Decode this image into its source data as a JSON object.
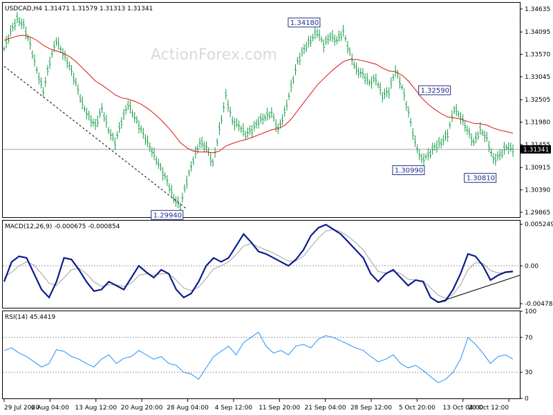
{
  "header": {
    "symbol_info": "USDCAD,H4  1.31471 1.31579 1.31313 1.31341",
    "watermark": "ActionForex.com"
  },
  "colors": {
    "candle": "#0f9a43",
    "ma": "#e01010",
    "macd_main": "#0a1a8c",
    "macd_signal": "#a0a0a0",
    "rsi": "#1e90ff",
    "callout": "#1f2d86",
    "grid": "#999999"
  },
  "chart_data": [
    {
      "type": "line",
      "panel": "price",
      "title": "USDCAD,H4",
      "ohlc_last": {
        "open": 1.31471,
        "high": 1.31579,
        "low": 1.31313,
        "close": 1.31341
      },
      "ylim": [
        1.2975,
        1.3478
      ],
      "y_ticks": [
        "1.34635",
        "1.34095",
        "1.33570",
        "1.33045",
        "1.32505",
        "1.31980",
        "1.31455",
        "1.30915",
        "1.30390",
        "1.29865"
      ],
      "current_price": "1.31341",
      "x_tick_labels": [
        "29 Jul 2020",
        "6 Aug 04:00",
        "13 Aug 12:00",
        "20 Aug 20:00",
        "28 Aug 04:00",
        "4 Sep 12:00",
        "11 Sep 20:00",
        "21 Sep 04:00",
        "28 Sep 12:00",
        "5 Oct 20:00",
        "13 Oct 04:00",
        "20 Oct 12:00"
      ],
      "annotations": [
        "1.34180",
        "1.32590",
        "1.30990",
        "1.30810",
        "1.29940"
      ],
      "series": [
        {
          "values": [
            1.337,
            1.341,
            1.344,
            1.3425,
            1.338,
            1.332,
            1.327,
            1.334,
            1.339,
            1.336,
            1.333,
            1.329,
            1.324,
            1.321,
            1.319,
            1.323,
            1.318,
            1.315,
            1.32,
            1.324,
            1.321,
            1.318,
            1.315,
            1.312,
            1.309,
            1.306,
            1.302,
            1.3,
            1.306,
            1.311,
            1.315,
            1.314,
            1.31,
            1.318,
            1.326,
            1.32,
            1.319,
            1.317,
            1.318,
            1.32,
            1.321,
            1.322,
            1.318,
            1.322,
            1.328,
            1.334,
            1.337,
            1.339,
            1.341,
            1.338,
            1.34,
            1.339,
            1.341,
            1.336,
            1.332,
            1.331,
            1.329,
            1.33,
            1.326,
            1.327,
            1.332,
            1.328,
            1.322,
            1.315,
            1.311,
            1.312,
            1.314,
            1.315,
            1.317,
            1.323,
            1.321,
            1.318,
            1.315,
            1.318,
            1.316,
            1.311,
            1.312,
            1.314,
            1.3134
          ]
        },
        {
          "values": [
            1.339,
            1.3395,
            1.34,
            1.3402,
            1.3398,
            1.339,
            1.3378,
            1.337,
            1.3365,
            1.336,
            1.3352,
            1.334,
            1.3325,
            1.331,
            1.3294,
            1.3285,
            1.3274,
            1.3262,
            1.3255,
            1.3252,
            1.3247,
            1.324,
            1.323,
            1.3218,
            1.3204,
            1.3188,
            1.317,
            1.315,
            1.3138,
            1.313,
            1.3128,
            1.3128,
            1.3126,
            1.313,
            1.3142,
            1.3148,
            1.3153,
            1.3157,
            1.3162,
            1.3168,
            1.3174,
            1.318,
            1.3183,
            1.319,
            1.3205,
            1.3225,
            1.3245,
            1.3265,
            1.3285,
            1.33,
            1.3315,
            1.3328,
            1.334,
            1.3345,
            1.3345,
            1.3342,
            1.3338,
            1.3334,
            1.3325,
            1.3318,
            1.3316,
            1.3308,
            1.3294,
            1.3275,
            1.3255,
            1.324,
            1.3228,
            1.3218,
            1.321,
            1.3208,
            1.3205,
            1.32,
            1.3195,
            1.3194,
            1.3191,
            1.3184,
            1.3179,
            1.3176,
            1.3172
          ]
        }
      ]
    },
    {
      "type": "line",
      "panel": "macd",
      "title": "MACD(12,26,9) -0.000675 -0.000854",
      "ylim": [
        -0.0053,
        0.0057
      ],
      "y_ticks": [
        "0.005249",
        "0.00",
        "-0.004785"
      ],
      "series": [
        {
          "values": [
            -0.002,
            0.0005,
            0.0012,
            0.001,
            -0.001,
            -0.003,
            -0.004,
            -0.002,
            0.001,
            0.0008,
            -0.0005,
            -0.002,
            -0.0032,
            -0.003,
            -0.002,
            -0.0025,
            -0.003,
            -0.0015,
            0.0,
            -0.0008,
            -0.0015,
            -0.0005,
            -0.001,
            -0.003,
            -0.004,
            -0.0035,
            -0.002,
            0.0,
            0.001,
            0.0005,
            0.001,
            0.0025,
            0.004,
            0.003,
            0.0018,
            0.0015,
            0.001,
            0.0005,
            0.0,
            0.0008,
            0.002,
            0.0038,
            0.0048,
            0.0052,
            0.0046,
            0.004,
            0.003,
            0.002,
            0.001,
            -0.001,
            -0.002,
            -0.001,
            -0.0005,
            -0.0015,
            -0.0025,
            -0.0018,
            -0.002,
            -0.004,
            -0.0046,
            -0.0044,
            -0.003,
            -0.001,
            0.0015,
            0.0012,
            0.0,
            -0.0018,
            -0.0012,
            -0.0008,
            -0.0007
          ]
        },
        {
          "values": [
            -0.0015,
            -0.0008,
            0.0,
            0.0005,
            0.0001,
            -0.001,
            -0.0022,
            -0.0025,
            -0.0015,
            -0.0005,
            -0.0003,
            -0.001,
            -0.002,
            -0.0026,
            -0.0024,
            -0.0024,
            -0.0026,
            -0.0022,
            -0.0012,
            -0.001,
            -0.0012,
            -0.001,
            -0.001,
            -0.0018,
            -0.0028,
            -0.0031,
            -0.0027,
            -0.0016,
            -0.0004,
            0.0,
            0.0005,
            0.0014,
            0.0025,
            0.0028,
            0.0024,
            0.002,
            0.0016,
            0.0011,
            0.0006,
            0.0006,
            0.0012,
            0.0024,
            0.0035,
            0.0044,
            0.0046,
            0.0043,
            0.0037,
            0.0029,
            0.002,
            0.0006,
            -0.0007,
            -0.0009,
            -0.0007,
            -0.001,
            -0.0017,
            -0.0018,
            -0.0019,
            -0.0028,
            -0.0037,
            -0.0041,
            -0.0036,
            -0.0024,
            -0.0005,
            0.0004,
            0.0003,
            -0.0006,
            -0.0009,
            -0.0009,
            -0.0008
          ]
        }
      ]
    },
    {
      "type": "line",
      "panel": "rsi",
      "title": "RSI(14) 45.4419",
      "ylim": [
        0,
        100
      ],
      "y_ticks": [
        "100",
        "70",
        "30",
        "0"
      ],
      "levels": [
        70,
        30
      ],
      "series": [
        {
          "values": [
            55,
            58,
            52,
            48,
            42,
            36,
            40,
            56,
            54,
            48,
            45,
            40,
            36,
            45,
            50,
            40,
            46,
            48,
            55,
            50,
            45,
            48,
            40,
            38,
            30,
            28,
            22,
            35,
            48,
            54,
            60,
            50,
            64,
            70,
            76,
            60,
            52,
            55,
            50,
            60,
            62,
            58,
            68,
            72,
            70,
            66,
            62,
            58,
            55,
            48,
            42,
            45,
            50,
            40,
            35,
            38,
            32,
            25,
            18,
            22,
            30,
            45,
            70,
            62,
            52,
            40,
            48,
            50,
            45
          ]
        }
      ]
    }
  ]
}
